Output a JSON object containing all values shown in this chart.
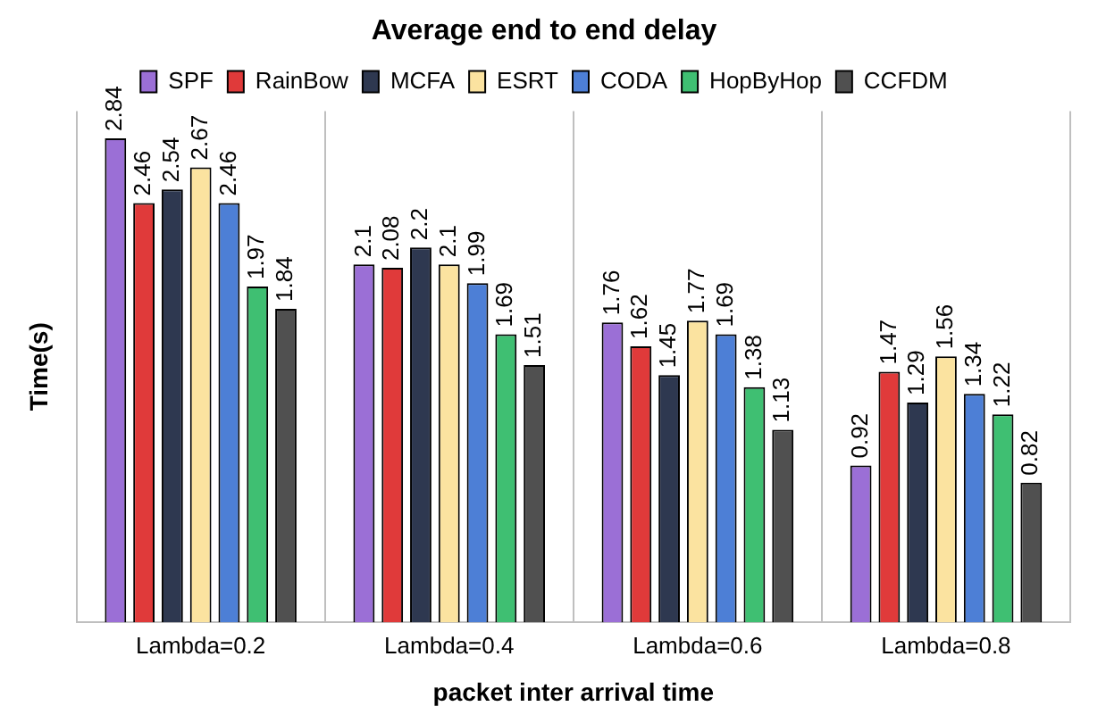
{
  "chart_data": {
    "type": "bar",
    "title": "Average end to end delay",
    "xlabel": "packet inter arrival time",
    "ylabel": "Time(s)",
    "categories": [
      "Lambda=0.2",
      "Lambda=0.4",
      "Lambda=0.6",
      "Lambda=0.8"
    ],
    "series": [
      {
        "name": "SPF",
        "color": "#9b6fd6",
        "values": [
          2.84,
          2.1,
          1.76,
          0.92
        ]
      },
      {
        "name": "RainBow",
        "color": "#e03a3a",
        "values": [
          2.46,
          2.08,
          1.62,
          1.47
        ]
      },
      {
        "name": "MCFA",
        "color": "#2e3850",
        "values": [
          2.54,
          2.2,
          1.45,
          1.29
        ]
      },
      {
        "name": "ESRT",
        "color": "#fbe3a0",
        "values": [
          2.67,
          2.1,
          1.77,
          1.56
        ]
      },
      {
        "name": "CODA",
        "color": "#4d7fd6",
        "values": [
          2.46,
          1.99,
          1.69,
          1.34
        ]
      },
      {
        "name": "HopByHop",
        "color": "#3fbf72",
        "values": [
          1.97,
          1.69,
          1.38,
          1.22
        ]
      },
      {
        "name": "CCFDM",
        "color": "#505050",
        "values": [
          1.84,
          1.51,
          1.13,
          0.82
        ]
      }
    ],
    "ylim": [
      0,
      3
    ],
    "tick_labels": "x",
    "grid": "x",
    "legend": "top",
    "data_labels": true
  }
}
